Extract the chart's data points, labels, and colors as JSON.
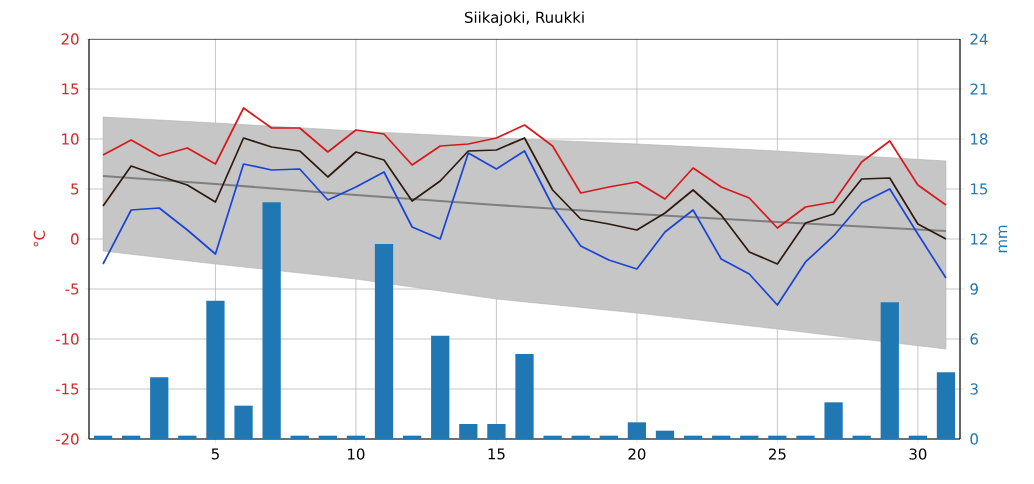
{
  "chart_data": {
    "type": "line",
    "title": "Siikajoki, Ruukki",
    "ylabel": "°C",
    "y2label": "mm",
    "x": [
      1,
      2,
      3,
      4,
      5,
      6,
      7,
      8,
      9,
      10,
      11,
      12,
      13,
      14,
      15,
      16,
      17,
      18,
      19,
      20,
      21,
      22,
      23,
      24,
      25,
      26,
      27,
      28,
      29,
      30,
      31
    ],
    "xlim": [
      0.5,
      31.5
    ],
    "xticks": [
      5,
      10,
      15,
      20,
      25,
      30
    ],
    "ylim": [
      -20,
      20
    ],
    "yticks": [
      -20,
      -15,
      -10,
      -5,
      0,
      5,
      10,
      15,
      20
    ],
    "y2lim": [
      0,
      24
    ],
    "y2ticks": [
      0,
      3,
      6,
      9,
      12,
      15,
      18,
      21,
      24
    ],
    "grid": true,
    "series": [
      {
        "x": [
          1,
          5,
          10,
          15,
          20,
          25,
          31
        ],
        "color": "#7f7f7f",
        "values": [
          6.3,
          5.5,
          4.4,
          3.4,
          2.5,
          1.7,
          0.8
        ],
        "lower": [
          -1.2,
          -2.5,
          -4.0,
          -6.0,
          -7.4,
          -9.0,
          -11.0
        ],
        "upper": [
          12.2,
          11.6,
          10.8,
          10.1,
          9.5,
          8.8,
          7.8
        ]
      },
      {
        "type": "bar",
        "axis": "y2",
        "color": "#1f77b4",
        "values": [
          0.2,
          0.2,
          3.7,
          0.2,
          8.3,
          2.0,
          14.2,
          0.2,
          0.2,
          0.2,
          11.7,
          0.2,
          6.2,
          0.9,
          0.9,
          5.1,
          0.2,
          0.2,
          0.2,
          1.0,
          0.5,
          0.2,
          0.2,
          0.2,
          0.2,
          0.2,
          2.2,
          0.2,
          8.2,
          0.2,
          4.0
        ]
      },
      {
        "color": "#d7191c",
        "values": [
          8.4,
          9.9,
          8.3,
          9.1,
          7.5,
          13.1,
          11.1,
          11.1,
          8.7,
          10.9,
          10.5,
          7.4,
          9.3,
          9.5,
          10.1,
          11.4,
          9.3,
          4.6,
          5.2,
          5.7,
          4.0,
          7.1,
          5.2,
          4.1,
          1.1,
          3.2,
          3.7,
          7.7,
          9.8,
          5.4,
          3.4
        ]
      },
      {
        "color": "#2e1a0e",
        "values": [
          3.3,
          7.3,
          6.3,
          5.4,
          3.7,
          10.1,
          9.2,
          8.8,
          6.2,
          8.7,
          7.9,
          3.8,
          5.8,
          8.8,
          8.9,
          10.1,
          4.9,
          2.0,
          1.5,
          0.9,
          2.6,
          4.9,
          2.4,
          -1.3,
          -2.5,
          1.6,
          2.5,
          6.0,
          6.1,
          1.5,
          0.0
        ]
      },
      {
        "color": "#1a44d6",
        "values": [
          -2.5,
          2.9,
          3.1,
          0.9,
          -1.5,
          7.5,
          6.9,
          7.0,
          3.9,
          5.2,
          6.7,
          1.2,
          0.0,
          8.6,
          7.0,
          8.8,
          3.3,
          -0.7,
          -2.1,
          -3.0,
          0.7,
          2.9,
          -2.0,
          -3.5,
          -6.6,
          -2.3,
          0.3,
          3.6,
          5.0,
          0.5,
          -3.9
        ]
      }
    ]
  }
}
